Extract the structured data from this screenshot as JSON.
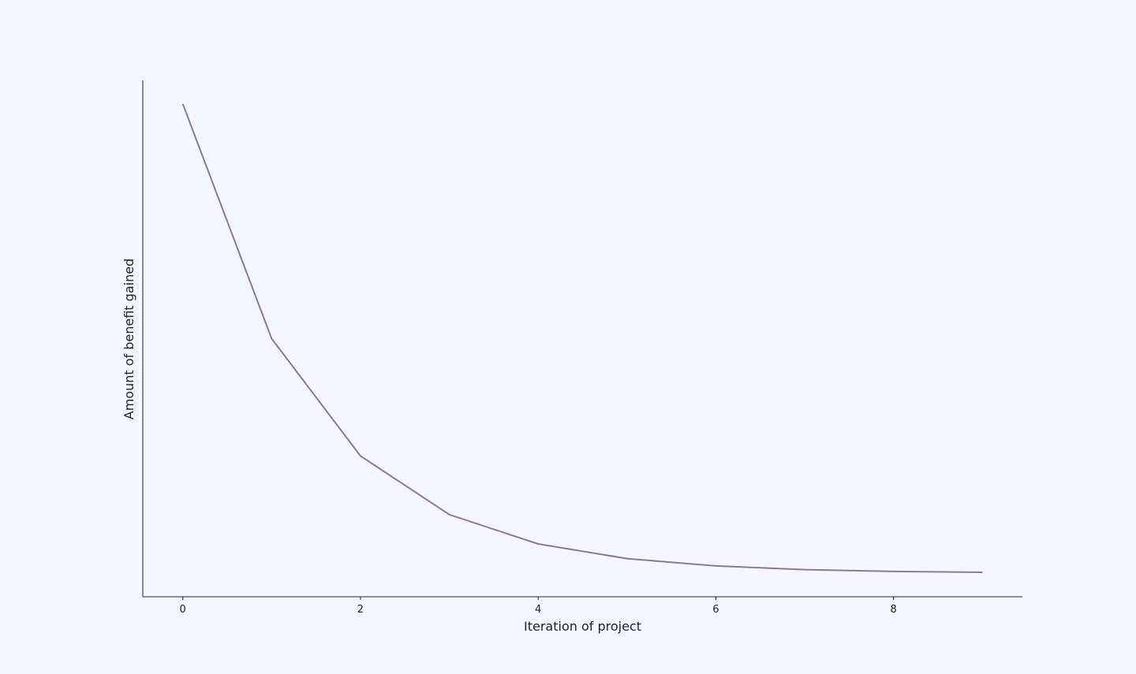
{
  "colors": {
    "background": "#f4f7ff",
    "line": "#8a7a92",
    "axis": "#222222"
  },
  "chart_data": {
    "type": "line",
    "title": "",
    "xlabel": "Iteration of project",
    "ylabel": "Amount of benefit gained",
    "x": [
      0,
      1,
      2,
      3,
      4,
      5,
      6,
      7,
      8,
      9
    ],
    "series": [
      {
        "values": [
          1.0,
          0.5,
          0.25,
          0.125,
          0.0625,
          0.03125,
          0.015625,
          0.0078125,
          0.00390625,
          0.001953125
        ]
      }
    ],
    "xticks": [
      0,
      2,
      4,
      6,
      8
    ],
    "xtick_labels": [
      "0",
      "2",
      "4",
      "6",
      "8"
    ],
    "xlim": [
      -0.45,
      9.45
    ],
    "ylim": [
      -0.05,
      1.05
    ],
    "yticks_visible": false,
    "grid": false,
    "legend": "none",
    "spines": [
      "left",
      "bottom"
    ]
  }
}
